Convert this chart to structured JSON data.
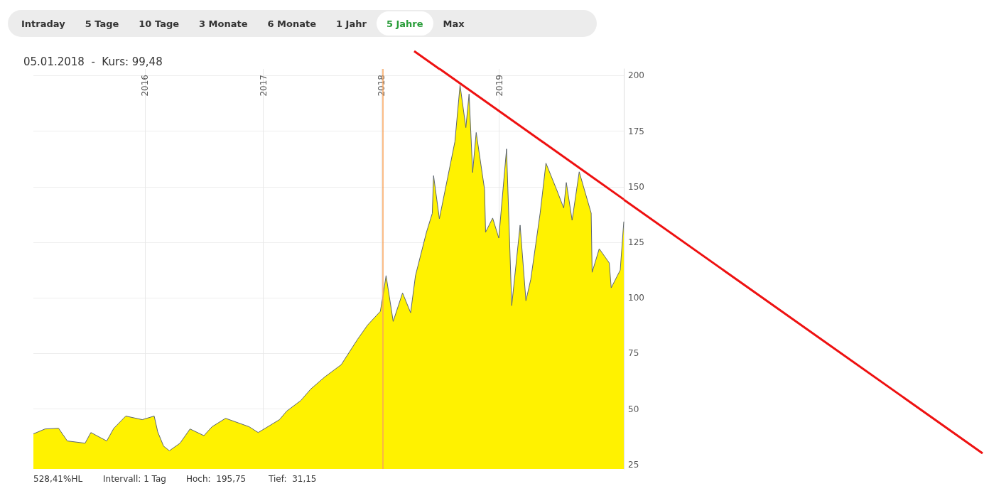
{
  "chart_data": {
    "type": "area",
    "title": "05.01.2018  -  Kurs: 99,48",
    "annotations": [
      "Intraday",
      "5 Tage",
      "10 Tage",
      "3 Monate",
      "6 Monate",
      "1 Jahr",
      "5 Jahre",
      "Max",
      "528,41%HL",
      "Intervall: 1 Tag",
      "Hoch:  195,75",
      "Tief:  31,15"
    ],
    "x": [
      "2015-01-20",
      "2015-02-25",
      "2015-04-08",
      "2015-05-05",
      "2015-06-29",
      "2015-07-17",
      "2015-09-04",
      "2015-09-26",
      "2015-11-02",
      "2015-12-23",
      "2016-01-29",
      "2016-02-09",
      "2016-02-27",
      "2016-03-16",
      "2016-04-18",
      "2016-05-19",
      "2016-07-01",
      "2016-07-26",
      "2016-09-06",
      "2016-11-18",
      "2016-12-16",
      "2017-02-20",
      "2017-03-14",
      "2017-04-27",
      "2017-05-28",
      "2017-07-10",
      "2017-08-30",
      "2017-10-20",
      "2017-11-20",
      "2017-12-29",
      "2018-01-05",
      "2018-01-16",
      "2018-02-07",
      "2018-03-08",
      "2018-04-02",
      "2018-04-17",
      "2018-05-21",
      "2018-06-08",
      "2018-06-12",
      "2018-06-30",
      "2018-08-17",
      "2018-09-02",
      "2018-09-20",
      "2018-09-30",
      "2018-10-11",
      "2018-10-22",
      "2018-11-17",
      "2018-11-20",
      "2018-12-12",
      "2018-12-31",
      "2019-01-24",
      "2019-02-09",
      "2019-03-07",
      "2019-03-25",
      "2019-04-09",
      "2019-05-08",
      "2019-05-26",
      "2019-06-28",
      "2019-07-20",
      "2019-07-28",
      "2019-08-15",
      "2019-09-06",
      "2019-10-13",
      "2019-10-16",
      "2019-11-07",
      "2019-12-08",
      "2019-12-14",
      "2020-01-11",
      "2020-01-22"
    ],
    "series": [
      {
        "color": "#fff200",
        "values": [
          38.8,
          41,
          41.3,
          35.6,
          34.6,
          39.4,
          35.6,
          41.3,
          46.8,
          45.2,
          46.8,
          39.7,
          33.3,
          31.2,
          34.6,
          41,
          38,
          42,
          45.8,
          42,
          39.4,
          45.2,
          49,
          53.8,
          59,
          64.4,
          69.9,
          81.4,
          87.8,
          93.9,
          99.5,
          110,
          89.4,
          102.2,
          93.3,
          110,
          129.5,
          138,
          155,
          135.6,
          170.2,
          195.7,
          176.6,
          191.7,
          156.4,
          174.4,
          148.7,
          129.5,
          135.9,
          126.9,
          167,
          96.5,
          132.7,
          98.7,
          108.3,
          138.1,
          160.6,
          148.7,
          140.4,
          151.9,
          134.9,
          156.7,
          138.1,
          111.5,
          122.1,
          115.7,
          104.5,
          112.5,
          134.3
        ]
      },
      {
        "type": "line",
        "color": "#ee1111",
        "x": [
          "2018-07-01",
          "2020-01-22"
        ],
        "values": [
          203,
          144.3
        ]
      }
    ],
    "xlim": [
      "2015-01-20",
      "2020-01-22"
    ],
    "xticks": [
      {
        "value": "2016-01-01",
        "label": "2016"
      },
      {
        "value": "2017-01-01",
        "label": "2017"
      },
      {
        "value": "2018-01-01",
        "label": "2018"
      },
      {
        "value": "2019-01-01",
        "label": "2019"
      }
    ],
    "ylim": [
      23,
      203
    ],
    "yticks": [
      25,
      50,
      75,
      100,
      125,
      150,
      175,
      200
    ],
    "ref_lines": [
      {
        "axis": "x",
        "value": "2018-01-05",
        "color": "#f7a35c"
      }
    ],
    "grid": true,
    "marker": "none"
  }
}
